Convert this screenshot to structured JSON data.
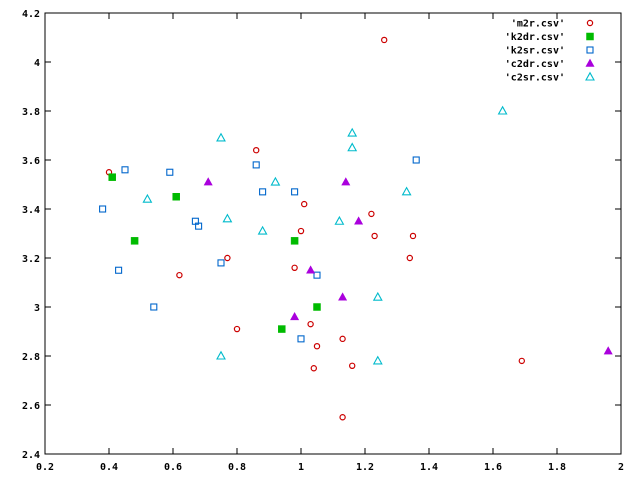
{
  "chart_data": {
    "type": "scatter",
    "title": "",
    "xlabel": "",
    "ylabel": "",
    "xlim": [
      0.2,
      2.0
    ],
    "ylim": [
      2.4,
      4.2
    ],
    "xticks": [
      "0.2",
      "0.4",
      "0.6",
      "0.8",
      "1",
      "1.2",
      "1.4",
      "1.6",
      "1.8",
      "2"
    ],
    "yticks": [
      "2.4",
      "2.6",
      "2.8",
      "3",
      "3.2",
      "3.4",
      "3.6",
      "3.8",
      "4",
      "4.2"
    ],
    "grid": false,
    "legend_position": "top-right",
    "series": [
      {
        "name": "'m2r.csv'",
        "marker": "circle-open",
        "color": "#cc0000",
        "points": [
          [
            0.4,
            3.55
          ],
          [
            0.62,
            3.13
          ],
          [
            0.77,
            3.2
          ],
          [
            0.8,
            2.91
          ],
          [
            0.86,
            3.64
          ],
          [
            0.98,
            3.16
          ],
          [
            1.0,
            3.31
          ],
          [
            1.01,
            3.42
          ],
          [
            1.03,
            2.93
          ],
          [
            1.04,
            2.75
          ],
          [
            1.05,
            2.84
          ],
          [
            1.13,
            2.55
          ],
          [
            1.13,
            2.87
          ],
          [
            1.16,
            2.76
          ],
          [
            1.22,
            3.38
          ],
          [
            1.23,
            3.29
          ],
          [
            1.26,
            4.09
          ],
          [
            1.34,
            3.2
          ],
          [
            1.35,
            3.29
          ],
          [
            1.69,
            2.78
          ]
        ]
      },
      {
        "name": "'k2dr.csv'",
        "marker": "square-filled",
        "color": "#00bb00",
        "points": [
          [
            0.41,
            3.53
          ],
          [
            0.48,
            3.27
          ],
          [
            0.61,
            3.45
          ],
          [
            0.94,
            2.91
          ],
          [
            0.98,
            3.27
          ],
          [
            1.05,
            3.0
          ]
        ]
      },
      {
        "name": "'k2sr.csv'",
        "marker": "square-open",
        "color": "#0066cc",
        "points": [
          [
            0.38,
            3.4
          ],
          [
            0.43,
            3.15
          ],
          [
            0.45,
            3.56
          ],
          [
            0.54,
            3.0
          ],
          [
            0.59,
            3.55
          ],
          [
            0.67,
            3.35
          ],
          [
            0.68,
            3.33
          ],
          [
            0.75,
            3.18
          ],
          [
            0.86,
            3.58
          ],
          [
            0.88,
            3.47
          ],
          [
            0.98,
            3.47
          ],
          [
            1.0,
            2.87
          ],
          [
            1.05,
            3.13
          ],
          [
            1.36,
            3.6
          ]
        ]
      },
      {
        "name": "'c2dr.csv'",
        "marker": "triangle-filled",
        "color": "#aa00dd",
        "points": [
          [
            0.71,
            3.51
          ],
          [
            0.98,
            2.96
          ],
          [
            1.03,
            3.15
          ],
          [
            1.13,
            3.04
          ],
          [
            1.14,
            3.51
          ],
          [
            1.18,
            3.35
          ],
          [
            1.96,
            2.82
          ]
        ]
      },
      {
        "name": "'c2sr.csv'",
        "marker": "triangle-open",
        "color": "#00bbcc",
        "points": [
          [
            0.52,
            3.44
          ],
          [
            0.75,
            3.69
          ],
          [
            0.75,
            2.8
          ],
          [
            0.77,
            3.36
          ],
          [
            0.88,
            3.31
          ],
          [
            0.92,
            3.51
          ],
          [
            1.12,
            3.35
          ],
          [
            1.16,
            3.71
          ],
          [
            1.16,
            3.65
          ],
          [
            1.24,
            3.04
          ],
          [
            1.24,
            2.78
          ],
          [
            1.33,
            3.47
          ],
          [
            1.63,
            3.8
          ]
        ]
      }
    ]
  }
}
